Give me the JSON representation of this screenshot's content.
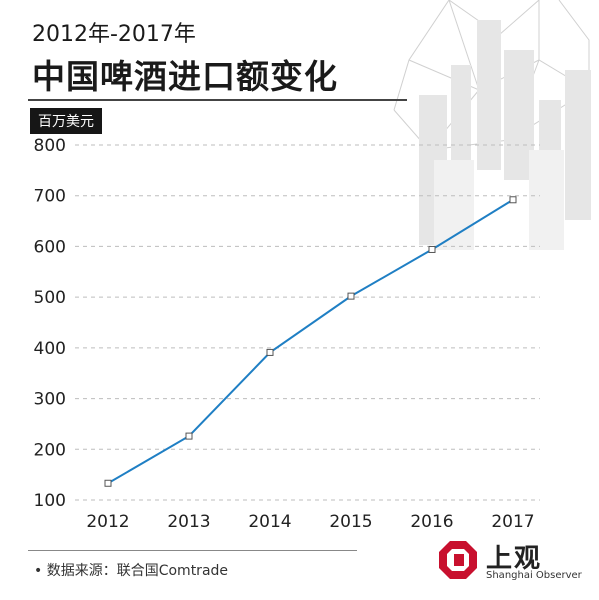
{
  "header": {
    "subtitle": "2012年-2017年",
    "title": "中国啤酒进口额变化",
    "unit": "百万美元"
  },
  "footer": {
    "source": "数据来源：联合国Comtrade"
  },
  "logo": {
    "chinese": "上观",
    "english": "Shanghai Observer"
  },
  "chart_data": {
    "type": "line",
    "title": "中国啤酒进口额变化",
    "subtitle": "2012年-2017年",
    "ylabel": "百万美元",
    "x": [
      "2012",
      "2013",
      "2014",
      "2015",
      "2016",
      "2017"
    ],
    "yticks": [
      100,
      200,
      300,
      400,
      500,
      600,
      700,
      800
    ],
    "ylim": [
      100,
      800
    ],
    "grid": true,
    "series": [
      {
        "values": [
          133,
          226,
          391,
          502,
          594,
          692
        ]
      }
    ],
    "colors": {
      "line": "#1f7fc4",
      "grid": "#bdbdbd",
      "marker_fill": "#ffffff",
      "marker_stroke": "#555555"
    }
  }
}
